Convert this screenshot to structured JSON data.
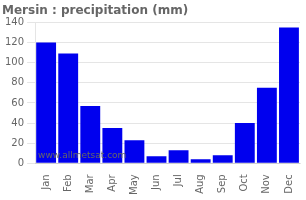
{
  "chart_data": {
    "type": "bar",
    "title": "Mersin : precipitation (mm)",
    "categories": [
      "Jan",
      "Feb",
      "Mar",
      "Apr",
      "May",
      "Jun",
      "Jul",
      "Aug",
      "Sep",
      "Oct",
      "Nov",
      "Dec"
    ],
    "values": [
      120,
      109,
      57,
      35,
      23,
      7,
      13,
      4,
      8,
      40,
      75,
      135
    ],
    "color": "#0000ee",
    "ylim": [
      0,
      140
    ],
    "yticks": [
      0,
      20,
      40,
      60,
      80,
      100,
      120,
      140
    ],
    "grid": true,
    "annotation": "www.allmetsat.com"
  }
}
